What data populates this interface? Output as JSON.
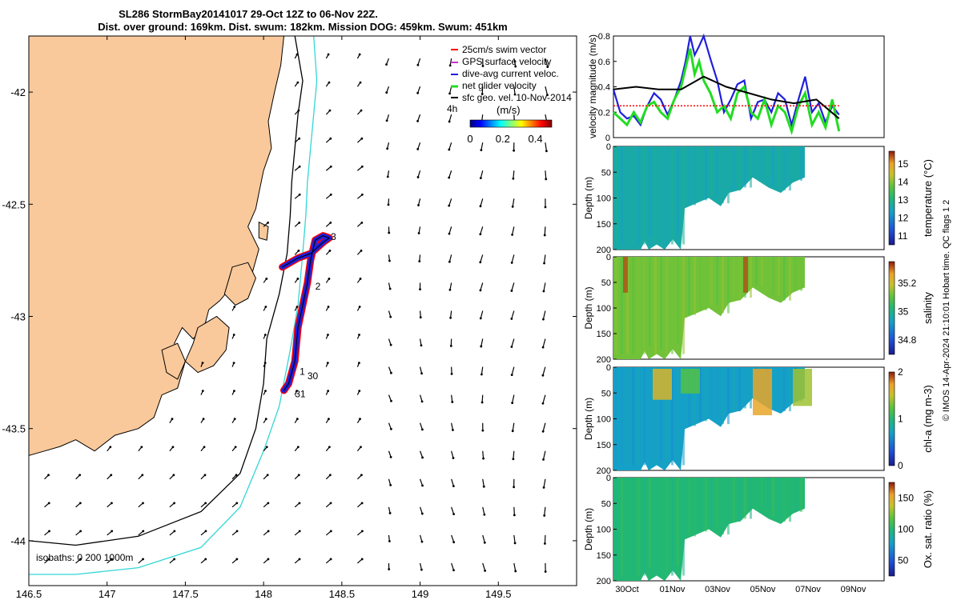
{
  "title_line1": "SL286 StormBay20141017 29-Oct 12Z to 06-Nov 22Z.",
  "title_line2": "Dist. over ground: 169km. Dist. swum: 182km. Mission DOG: 459km. Swum: 451km",
  "credit": "© IMOS 14-Apr-2024 21:10:01 Hobart time. QC flags 1  2",
  "colors": {
    "land": "#f9c99b",
    "iso200": "#000000",
    "iso1000": "#33d6d6",
    "swim": "#ff0000",
    "gps": "#cc33cc",
    "dive_avg": "#1f1fdd",
    "net_glider": "#22dd22",
    "sfc_geo": "#000000",
    "swim_ref": "#ff0000"
  },
  "icons": {
    "legend_marker": "arrow-icon"
  },
  "chart_data": [
    {
      "type": "map",
      "xticks": [
        "146.5",
        "147",
        "147.5",
        "148",
        "148.5",
        "149",
        "149.5"
      ],
      "yticks": [
        "-42",
        "-42.5",
        "-43",
        "-43.5",
        "-44"
      ],
      "xlim": [
        146.5,
        150.0
      ],
      "ylim": [
        -44.2,
        -41.75
      ],
      "legend": [
        "25cm/s swim vector",
        "GPS surface velocity",
        "dive-avg current veloc.",
        "net glider velocity",
        "sfc geo. vel. 10-Nov-2014"
      ],
      "legend_extra": "4h",
      "colorbar": {
        "label": "(m/s)",
        "ticks": [
          "0",
          "0.2",
          "0.4"
        ],
        "range": [
          0,
          0.5
        ]
      },
      "isobath_label": "isobaths: 0   200  1000m",
      "track_labels": [
        {
          "text": "3",
          "lon": 148.43,
          "lat": -42.66
        },
        {
          "text": "2",
          "lon": 148.33,
          "lat": -42.88
        },
        {
          "text": "1",
          "lon": 148.23,
          "lat": -43.26
        },
        {
          "text": "30",
          "lon": 148.28,
          "lat": -43.28
        },
        {
          "text": "31",
          "lon": 148.2,
          "lat": -43.36
        }
      ],
      "coastline": [
        [
          146.5,
          -41.75
        ],
        [
          148.13,
          -41.75
        ],
        [
          148.11,
          -41.88
        ],
        [
          148.07,
          -42.0
        ],
        [
          148.03,
          -42.13
        ],
        [
          148.05,
          -42.25
        ],
        [
          148.0,
          -42.35
        ],
        [
          147.97,
          -42.45
        ],
        [
          147.95,
          -42.52
        ],
        [
          147.9,
          -42.6
        ],
        [
          147.97,
          -42.7
        ],
        [
          147.93,
          -42.8
        ],
        [
          147.85,
          -42.82
        ],
        [
          147.78,
          -42.88
        ],
        [
          147.72,
          -42.93
        ],
        [
          147.65,
          -42.97
        ],
        [
          147.62,
          -43.05
        ],
        [
          147.55,
          -43.1
        ],
        [
          147.48,
          -43.05
        ],
        [
          147.43,
          -43.12
        ],
        [
          147.5,
          -43.2
        ],
        [
          147.45,
          -43.32
        ],
        [
          147.35,
          -43.35
        ],
        [
          147.3,
          -43.45
        ],
        [
          147.2,
          -43.5
        ],
        [
          147.05,
          -43.53
        ],
        [
          146.92,
          -43.6
        ],
        [
          146.8,
          -43.55
        ],
        [
          146.7,
          -43.58
        ],
        [
          146.6,
          -43.6
        ],
        [
          146.5,
          -43.62
        ]
      ],
      "islands": [
        [
          [
            147.8,
            -42.78
          ],
          [
            147.9,
            -42.76
          ],
          [
            147.95,
            -42.83
          ],
          [
            147.9,
            -42.92
          ],
          [
            147.82,
            -42.95
          ],
          [
            147.75,
            -42.9
          ],
          [
            147.78,
            -42.83
          ]
        ],
        [
          [
            147.58,
            -43.05
          ],
          [
            147.7,
            -43.0
          ],
          [
            147.78,
            -43.05
          ],
          [
            147.76,
            -43.15
          ],
          [
            147.68,
            -43.22
          ],
          [
            147.58,
            -43.25
          ],
          [
            147.5,
            -43.2
          ],
          [
            147.55,
            -43.12
          ]
        ],
        [
          [
            147.35,
            -43.15
          ],
          [
            147.45,
            -43.12
          ],
          [
            147.5,
            -43.2
          ],
          [
            147.45,
            -43.28
          ],
          [
            147.38,
            -43.25
          ]
        ],
        [
          [
            147.97,
            -42.58
          ],
          [
            148.03,
            -42.6
          ],
          [
            148.02,
            -42.66
          ],
          [
            147.97,
            -42.65
          ]
        ]
      ],
      "iso200": [
        [
          148.2,
          -41.75
        ],
        [
          148.25,
          -41.95
        ],
        [
          148.22,
          -42.1
        ],
        [
          148.2,
          -42.25
        ],
        [
          148.18,
          -42.4
        ],
        [
          148.17,
          -42.55
        ],
        [
          148.15,
          -42.72
        ],
        [
          148.1,
          -42.9
        ],
        [
          148.02,
          -43.1
        ],
        [
          148.0,
          -43.3
        ],
        [
          147.95,
          -43.5
        ],
        [
          147.85,
          -43.7
        ],
        [
          147.6,
          -43.87
        ],
        [
          147.2,
          -43.98
        ],
        [
          146.8,
          -44.02
        ],
        [
          146.5,
          -44.0
        ]
      ],
      "iso1000": [
        [
          148.32,
          -41.75
        ],
        [
          148.34,
          -41.95
        ],
        [
          148.32,
          -42.1
        ],
        [
          148.3,
          -42.25
        ],
        [
          148.28,
          -42.4
        ],
        [
          148.27,
          -42.55
        ],
        [
          148.25,
          -42.72
        ],
        [
          148.22,
          -42.95
        ],
        [
          148.17,
          -43.15
        ],
        [
          148.1,
          -43.4
        ],
        [
          148.0,
          -43.6
        ],
        [
          147.85,
          -43.85
        ],
        [
          147.6,
          -44.03
        ],
        [
          147.2,
          -44.12
        ],
        [
          146.8,
          -44.15
        ],
        [
          146.5,
          -44.15
        ]
      ],
      "track": [
        [
          148.13,
          -43.33
        ],
        [
          148.16,
          -43.3
        ],
        [
          148.2,
          -43.2
        ],
        [
          148.22,
          -43.05
        ],
        [
          148.25,
          -42.95
        ],
        [
          148.28,
          -42.85
        ],
        [
          148.3,
          -42.75
        ],
        [
          148.33,
          -42.66
        ],
        [
          148.38,
          -42.64
        ],
        [
          148.42,
          -42.65
        ],
        [
          148.38,
          -42.67
        ],
        [
          148.3,
          -42.72
        ],
        [
          148.22,
          -42.74
        ],
        [
          148.12,
          -42.78
        ]
      ]
    },
    {
      "type": "line",
      "ylabel": "velocity magnitude (m/s)",
      "ylim": [
        0,
        0.8
      ],
      "yticks": [
        "0",
        "0.2",
        "0.4",
        "0.6",
        "0.8"
      ],
      "xlim": [
        0,
        12
      ],
      "series": [
        {
          "name": "dive-avg current veloc.",
          "x": [
            0,
            0.3,
            0.6,
            0.9,
            1.2,
            1.5,
            1.8,
            2.1,
            2.4,
            2.7,
            3.0,
            3.2,
            3.4,
            3.6,
            3.8,
            4.0,
            4.3,
            4.6,
            4.9,
            5.2,
            5.5,
            5.8,
            6.1,
            6.4,
            6.7,
            7.0,
            7.3,
            7.6,
            7.9,
            8.2,
            8.5,
            8.8,
            9.1,
            9.4,
            9.7,
            10.0
          ],
          "y": [
            0.38,
            0.2,
            0.15,
            0.17,
            0.1,
            0.25,
            0.35,
            0.3,
            0.18,
            0.3,
            0.45,
            0.6,
            0.8,
            0.65,
            0.72,
            0.8,
            0.62,
            0.45,
            0.2,
            0.3,
            0.42,
            0.45,
            0.15,
            0.28,
            0.3,
            0.2,
            0.35,
            0.3,
            0.1,
            0.3,
            0.48,
            0.2,
            0.27,
            0.12,
            0.25,
            0.18
          ]
        },
        {
          "name": "net glider velocity",
          "x": [
            0,
            0.3,
            0.6,
            0.9,
            1.2,
            1.5,
            1.8,
            2.1,
            2.4,
            2.7,
            3.0,
            3.2,
            3.4,
            3.6,
            3.8,
            4.0,
            4.3,
            4.6,
            4.9,
            5.2,
            5.5,
            5.8,
            6.1,
            6.4,
            6.7,
            7.0,
            7.3,
            7.6,
            7.9,
            8.2,
            8.5,
            8.8,
            9.1,
            9.4,
            9.7,
            10.0
          ],
          "y": [
            0.2,
            0.15,
            0.1,
            0.2,
            0.12,
            0.25,
            0.28,
            0.2,
            0.15,
            0.3,
            0.4,
            0.55,
            0.7,
            0.5,
            0.6,
            0.45,
            0.35,
            0.2,
            0.25,
            0.15,
            0.35,
            0.4,
            0.2,
            0.15,
            0.3,
            0.1,
            0.25,
            0.2,
            0.05,
            0.25,
            0.35,
            0.1,
            0.2,
            0.08,
            0.3,
            0.05
          ]
        },
        {
          "name": "sfc geo. vel. 10-Nov-2014",
          "x": [
            0,
            1,
            2,
            3,
            4,
            5,
            6,
            7,
            8,
            9,
            10
          ],
          "y": [
            0.38,
            0.4,
            0.38,
            0.38,
            0.48,
            0.4,
            0.35,
            0.3,
            0.27,
            0.3,
            0.15
          ]
        },
        {
          "name": "25cm/s swim vector",
          "x": [
            0,
            10
          ],
          "y": [
            0.25,
            0.25
          ]
        }
      ]
    },
    {
      "type": "heatmap",
      "ylabel": "Depth (m)",
      "colorbar_label": "temperature (°C)",
      "cticks": [
        "11",
        "12",
        "13",
        "14",
        "15"
      ],
      "crange": [
        10.5,
        15.7
      ],
      "value_main": 12.6,
      "yticks": [
        "0",
        "50",
        "100",
        "150",
        "200"
      ]
    },
    {
      "type": "heatmap",
      "ylabel": "Depth (m)",
      "colorbar_label": "salinity",
      "cticks": [
        "34.8",
        "35",
        "35.2"
      ],
      "crange": [
        34.7,
        35.35
      ],
      "value_main": 35.12,
      "yticks": [
        "0",
        "50",
        "100",
        "150",
        "200"
      ]
    },
    {
      "type": "heatmap",
      "ylabel": "Depth (m)",
      "colorbar_label": "chl-a (mg m-3)",
      "cticks": [
        "0",
        "1",
        "2"
      ],
      "crange": [
        0,
        2
      ],
      "value_main": 0.7,
      "yticks": [
        "0",
        "50",
        "100",
        "150",
        "200"
      ]
    },
    {
      "type": "heatmap",
      "ylabel": "Depth (m)",
      "colorbar_label": "Ox. sat. ratio (%)",
      "cticks": [
        "50",
        "100",
        "150"
      ],
      "crange": [
        25,
        175
      ],
      "value_main": 100,
      "xticks": [
        "30Oct",
        "01Nov",
        "03Nov",
        "05Nov",
        "07Nov",
        "09Nov"
      ],
      "yticks": [
        "0",
        "50",
        "100",
        "150",
        "200"
      ]
    }
  ]
}
